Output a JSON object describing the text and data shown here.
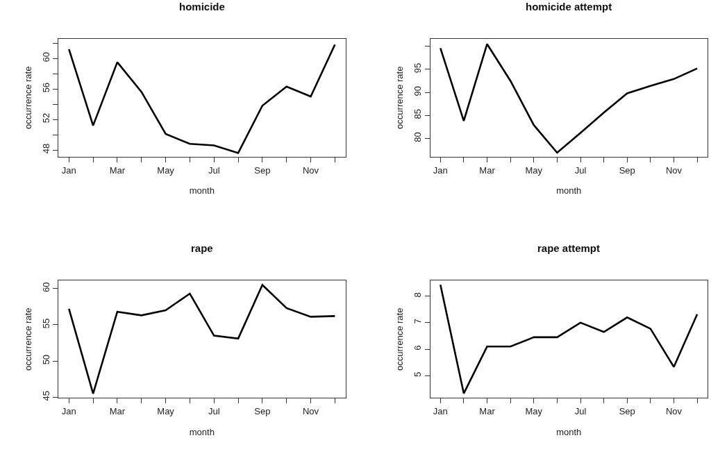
{
  "chart_data": [
    {
      "type": "line",
      "title": "homicide",
      "xlabel": "month",
      "ylabel": "occurrence rate",
      "categories": [
        "Jan",
        null,
        "Mar",
        null,
        "May",
        null,
        "Jul",
        null,
        "Sep",
        null,
        "Nov",
        null
      ],
      "color": "#000000",
      "line_style": "solid",
      "values": [
        61.2,
        51.2,
        59.5,
        55.6,
        50.1,
        48.8,
        48.6,
        47.6,
        53.8,
        56.3,
        55.0,
        61.8
      ],
      "ylim": [
        47.1,
        62.6
      ],
      "yticks": [
        48,
        {
          "value": 50,
          "label": null
        },
        52,
        {
          "value": 54,
          "label": null
        },
        56,
        {
          "value": 58,
          "label": null
        },
        60,
        {
          "value": 62,
          "label": null
        }
      ]
    },
    {
      "type": "line",
      "title": "homicide attempt",
      "xlabel": "month",
      "ylabel": "occurrence rate",
      "categories": [
        "Jan",
        null,
        "Mar",
        null,
        "May",
        null,
        "Jul",
        null,
        "Sep",
        null,
        "Nov",
        null
      ],
      "color": "#000000",
      "line_style": "solid",
      "values": [
        99.6,
        83.8,
        100.5,
        92.5,
        82.9,
        76.9,
        81.2,
        85.6,
        89.8,
        91.4,
        92.9,
        95.2
      ],
      "ylim": [
        76.0,
        101.7
      ],
      "yticks": [
        80,
        85,
        90,
        95,
        {
          "value": 100,
          "label": null
        }
      ]
    },
    {
      "type": "line",
      "title": "rape",
      "xlabel": "month",
      "ylabel": "occurrence rate",
      "categories": [
        "Jan",
        null,
        "Mar",
        null,
        "May",
        null,
        "Jul",
        null,
        "Sep",
        null,
        "Nov",
        null
      ],
      "color": "#000000",
      "line_style": "solid",
      "values": [
        57.2,
        45.5,
        56.8,
        56.3,
        57.0,
        59.3,
        53.5,
        53.1,
        60.5,
        57.3,
        56.1,
        56.2
      ],
      "ylim": [
        44.9,
        61.1
      ],
      "yticks": [
        45,
        50,
        55,
        60
      ]
    },
    {
      "type": "line",
      "title": "rape attempt",
      "xlabel": "month",
      "ylabel": "occurrence rate",
      "categories": [
        "Jan",
        null,
        "Mar",
        null,
        "May",
        null,
        "Jul",
        null,
        "Sep",
        null,
        "Nov",
        null
      ],
      "color": "#000000",
      "line_style": "solid",
      "values": [
        8.43,
        4.33,
        6.1,
        6.1,
        6.45,
        6.45,
        7.0,
        6.65,
        7.2,
        6.77,
        5.33,
        7.32
      ],
      "ylim": [
        4.16,
        8.59
      ],
      "yticks": [
        5,
        6,
        7,
        8
      ]
    }
  ]
}
